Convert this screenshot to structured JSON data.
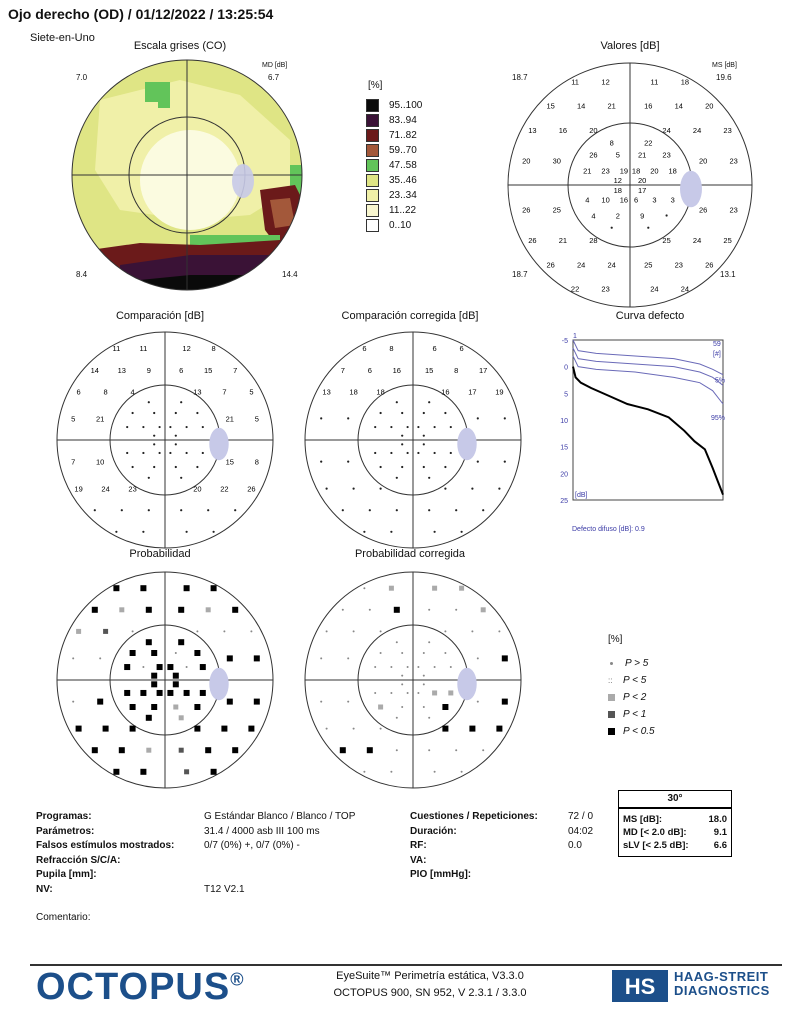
{
  "header": {
    "title": "Ojo derecho (OD) / 01/12/2022 / 13:25:54",
    "program": "Siete-en-Uno"
  },
  "grayscale": {
    "title": "Escala grises (CO)",
    "md_label": "MD [dB]",
    "md_value": "6.7",
    "tl": "7.0",
    "bl": "8.4",
    "br": "14.4"
  },
  "legend_scale": {
    "unit": "[%]",
    "items": [
      {
        "label": "95..100",
        "color": "#0a0a0a"
      },
      {
        "label": "83..94",
        "color": "#3a1236"
      },
      {
        "label": "71..82",
        "color": "#6b1a1a"
      },
      {
        "label": "59..70",
        "color": "#a3583a"
      },
      {
        "label": "47..58",
        "color": "#62c45a"
      },
      {
        "label": "35..46",
        "color": "#dfe585"
      },
      {
        "label": "23..34",
        "color": "#f0f0a8"
      },
      {
        "label": "11..22",
        "color": "#f8f6cf"
      },
      {
        "label": "0..10",
        "color": "#ffffff"
      }
    ]
  },
  "valores": {
    "title": "Valores [dB]",
    "md_label": "MS [dB]",
    "md_value": "19.6",
    "tl": "18.7",
    "bl": "18.7",
    "br": "13.1",
    "values": [
      "11",
      "12",
      "11",
      "18",
      "15",
      "14",
      "21",
      "16",
      "14",
      "20",
      "13",
      "16",
      "20",
      "24",
      "24",
      "23",
      "20",
      "30",
      "20",
      "23",
      "26",
      "25",
      "26",
      "23",
      "26",
      "21",
      "28",
      "25",
      "24",
      "25",
      "26",
      "24",
      "24",
      "25",
      "23",
      "26",
      "22",
      "23",
      "24",
      "24",
      "8",
      "22",
      "26",
      "5",
      "21",
      "23",
      "21",
      "23",
      "19",
      "18",
      "20",
      "18",
      "12",
      "20",
      "18",
      "17",
      "4",
      "10",
      "16",
      "6",
      "3",
      "3",
      "4",
      "2",
      "9"
    ]
  },
  "comparacion": {
    "title": "Comparación [dB]",
    "values": [
      "11",
      "11",
      "12",
      "8",
      "14",
      "13",
      "9",
      "6",
      "15",
      "7",
      "6",
      "8",
      "4",
      "13",
      "7",
      "5",
      "5",
      "21",
      "21",
      "5",
      "7",
      "10",
      "15",
      "8",
      "19",
      "24",
      "23",
      "20",
      "22",
      "26"
    ]
  },
  "comparacion_corregida": {
    "title": "Comparación corregida [dB]",
    "values": [
      "6",
      "8",
      "6",
      "6",
      "7",
      "6",
      "16",
      "15",
      "8",
      "17",
      "13",
      "18",
      "18",
      "16",
      "17",
      "19"
    ]
  },
  "curva": {
    "title": "Curva defecto",
    "x_start": "1",
    "x_end": "59",
    "x_unit": "[#]",
    "y_unit": "[dB]",
    "p5": "5%",
    "p95": "95%",
    "diffuse": "Defecto difuso [dB]: 0.9"
  },
  "chart_data": {
    "type": "line",
    "title": "Curva defecto",
    "xlabel": "[#]",
    "ylabel": "[dB]",
    "xlim": [
      1,
      59
    ],
    "ylim": [
      -5,
      25
    ],
    "series": [
      {
        "name": "patient",
        "x": [
          1,
          2,
          4,
          8,
          15,
          22,
          30,
          38,
          44,
          48,
          52,
          55,
          57,
          59
        ],
        "values": [
          0,
          2,
          3,
          4,
          5.5,
          7,
          8,
          9.5,
          12,
          14,
          15.5,
          19,
          21.5,
          24
        ]
      },
      {
        "name": "upper",
        "x": [
          1,
          3,
          10,
          25,
          40,
          50,
          55,
          59
        ],
        "values": [
          -5,
          -3,
          -2.5,
          -2,
          -1.5,
          -0.5,
          0.5,
          1.5
        ]
      },
      {
        "name": "5%",
        "x": [
          1,
          3,
          10,
          25,
          40,
          50,
          55,
          59
        ],
        "values": [
          -3.5,
          -1.5,
          -1,
          -0.5,
          0,
          1,
          2,
          3.5
        ]
      },
      {
        "name": "95%",
        "x": [
          1,
          3,
          10,
          25,
          40,
          50,
          55,
          59
        ],
        "values": [
          -2,
          0,
          0.5,
          1,
          2,
          3,
          4.5,
          7
        ]
      }
    ]
  },
  "probabilidad": {
    "title": "Probabilidad"
  },
  "probabilidad_corregida": {
    "title": "Probabilidad corregida"
  },
  "prob_legend": {
    "unit": "[%]",
    "items": [
      "P > 5",
      "P < 5",
      "P < 2",
      "P < 1",
      "P < 0.5"
    ]
  },
  "info": {
    "left": [
      {
        "label": "Programas:",
        "value": "G Estándar   Blanco / Blanco / TOP"
      },
      {
        "label": "Parámetros:",
        "value": "31.4  / 4000 asb III 100 ms"
      },
      {
        "label": "Falsos estímulos mostrados:",
        "value": "0/7 (0%) +, 0/7 (0%) -"
      },
      {
        "label": "Refracción S/C/A:",
        "value": ""
      },
      {
        "label": "Pupila [mm]:",
        "value": ""
      },
      {
        "label": "NV:",
        "value": "T12 V2.1"
      }
    ],
    "right": [
      {
        "label": "Cuestiones / Repeticiones:",
        "value": "72 / 0"
      },
      {
        "label": "Duración:",
        "value": "04:02"
      },
      {
        "label": "RF:",
        "value": "0.0"
      },
      {
        "label": "VA:",
        "value": ""
      },
      {
        "label": "PIO [mmHg]:",
        "value": ""
      }
    ]
  },
  "summary": {
    "header": "30°",
    "rows": [
      {
        "label": "MS [dB]:",
        "value": "18.0"
      },
      {
        "label": "MD [< 2.0 dB]:",
        "value": "9.1"
      },
      {
        "label": "sLV [< 2.5 dB]:",
        "value": "6.6"
      }
    ]
  },
  "comment": "Comentario:",
  "footer": {
    "logo": "OCTOPUS",
    "reg": "®",
    "line1": "EyeSuite™ Perimetría estática, V3.3.0",
    "line2": "OCTOPUS 900, SN 952, V 2.3.1  / 3.3.0",
    "brand1": "HAAG-STREIT",
    "brand2": "DIAGNOSTICS"
  }
}
